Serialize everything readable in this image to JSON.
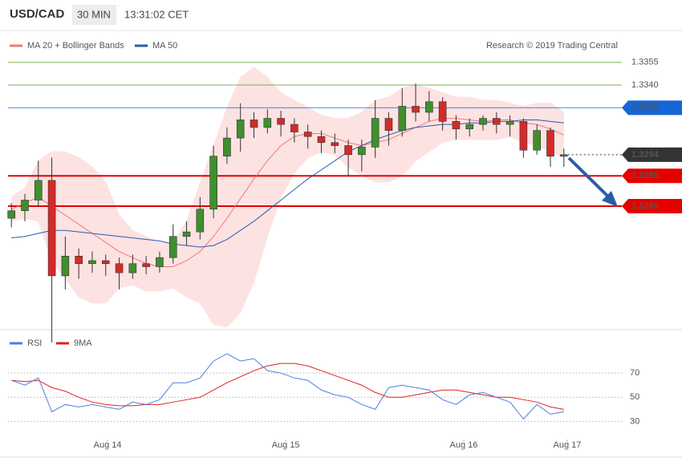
{
  "chart_data": [
    {
      "type": "candlestick",
      "title": "USD/CAD",
      "timeframe": "30 MIN",
      "time": "13:31:02 CET",
      "credit": "Research © 2019 Trading Central",
      "xlim": [
        -0.25,
        45.3
      ],
      "ylim": [
        1.318,
        1.3375
      ],
      "up_color": "#3f8f2f",
      "down_color": "#d42a2a",
      "ohlc": [
        [
          1.3252,
          1.3262,
          1.3246,
          1.3257
        ],
        [
          1.3257,
          1.3268,
          1.325,
          1.3264
        ],
        [
          1.3264,
          1.329,
          1.326,
          1.3277
        ],
        [
          1.3277,
          1.3292,
          1.317,
          1.3214
        ],
        [
          1.3214,
          1.324,
          1.3205,
          1.3227
        ],
        [
          1.3227,
          1.3232,
          1.3212,
          1.3222
        ],
        [
          1.3222,
          1.323,
          1.3216,
          1.3224
        ],
        [
          1.3224,
          1.3228,
          1.3214,
          1.3222
        ],
        [
          1.3222,
          1.3226,
          1.3205,
          1.3216
        ],
        [
          1.3216,
          1.3228,
          1.3212,
          1.3222
        ],
        [
          1.3222,
          1.3227,
          1.3215,
          1.322
        ],
        [
          1.322,
          1.323,
          1.3216,
          1.3226
        ],
        [
          1.3226,
          1.3248,
          1.3222,
          1.324
        ],
        [
          1.324,
          1.325,
          1.3234,
          1.3243
        ],
        [
          1.3243,
          1.3266,
          1.3238,
          1.3258
        ],
        [
          1.3258,
          1.33,
          1.3252,
          1.3293
        ],
        [
          1.3293,
          1.3312,
          1.3288,
          1.3305
        ],
        [
          1.3305,
          1.3328,
          1.3296,
          1.3317
        ],
        [
          1.3317,
          1.3322,
          1.3305,
          1.3312
        ],
        [
          1.3312,
          1.3324,
          1.3308,
          1.3318
        ],
        [
          1.3318,
          1.3323,
          1.3306,
          1.3314
        ],
        [
          1.3314,
          1.3318,
          1.3302,
          1.3309
        ],
        [
          1.3309,
          1.3314,
          1.3298,
          1.3306
        ],
        [
          1.3306,
          1.331,
          1.3295,
          1.3302
        ],
        [
          1.3302,
          1.3308,
          1.3295,
          1.33
        ],
        [
          1.33,
          1.3304,
          1.328,
          1.3294
        ],
        [
          1.3294,
          1.3304,
          1.3283,
          1.3299
        ],
        [
          1.3299,
          1.333,
          1.3292,
          1.3318
        ],
        [
          1.3318,
          1.3322,
          1.33,
          1.331
        ],
        [
          1.331,
          1.3338,
          1.3306,
          1.3326
        ],
        [
          1.3326,
          1.3341,
          1.3316,
          1.3322
        ],
        [
          1.3322,
          1.3336,
          1.3316,
          1.3329
        ],
        [
          1.3329,
          1.3332,
          1.331,
          1.3316
        ],
        [
          1.3316,
          1.332,
          1.3304,
          1.3311
        ],
        [
          1.3311,
          1.3318,
          1.3306,
          1.3314
        ],
        [
          1.3314,
          1.332,
          1.331,
          1.3318
        ],
        [
          1.3318,
          1.3322,
          1.3308,
          1.3314
        ],
        [
          1.3314,
          1.332,
          1.3306,
          1.3316
        ],
        [
          1.3316,
          1.3318,
          1.3292,
          1.3297
        ],
        [
          1.3297,
          1.3314,
          1.3294,
          1.331
        ],
        [
          1.331,
          1.3312,
          1.3286,
          1.3293
        ],
        [
          1.3293,
          1.3298,
          1.3286,
          1.3294
        ]
      ],
      "bands": {
        "color": "#fde2e2",
        "upper": [
          1.3266,
          1.3272,
          1.329,
          1.3296,
          1.3296,
          1.3292,
          1.3286,
          1.3276,
          1.3254,
          1.3244,
          1.324,
          1.3236,
          1.3236,
          1.325,
          1.3275,
          1.33,
          1.3325,
          1.3345,
          1.3352,
          1.3345,
          1.3335,
          1.333,
          1.3325,
          1.332,
          1.3318,
          1.3318,
          1.3322,
          1.333,
          1.3332,
          1.3338,
          1.334,
          1.3338,
          1.3335,
          1.3332,
          1.3332,
          1.333,
          1.333,
          1.3328,
          1.3326,
          1.3328,
          1.3328,
          1.3322
        ],
        "lower": [
          1.325,
          1.3252,
          1.325,
          1.3224,
          1.3212,
          1.32,
          1.3196,
          1.3196,
          1.3206,
          1.3208,
          1.3204,
          1.3204,
          1.3206,
          1.32,
          1.3196,
          1.3182,
          1.318,
          1.319,
          1.321,
          1.324,
          1.3266,
          1.3282,
          1.3292,
          1.3296,
          1.3294,
          1.3286,
          1.328,
          1.3276,
          1.3276,
          1.328,
          1.329,
          1.3296,
          1.3302,
          1.3304,
          1.3304,
          1.3304,
          1.3304,
          1.3306,
          1.3302,
          1.33,
          1.3296,
          1.3292
        ]
      },
      "series": [
        {
          "name": "MA 20 + Bollinger Bands",
          "color": "#f07a7a",
          "values": [
            1.3258,
            1.3262,
            1.3266,
            1.326,
            1.3254,
            1.3248,
            1.3242,
            1.3236,
            1.323,
            1.3226,
            1.3222,
            1.322,
            1.322,
            1.3224,
            1.323,
            1.324,
            1.3252,
            1.3265,
            1.3278,
            1.329,
            1.33,
            1.3306,
            1.3308,
            1.3308,
            1.3305,
            1.3302,
            1.33,
            1.3302,
            1.3304,
            1.3308,
            1.3312,
            1.3316,
            1.3318,
            1.3318,
            1.3317,
            1.3316,
            1.3317,
            1.3317,
            1.3315,
            1.3314,
            1.3311,
            1.3307
          ]
        },
        {
          "name": "MA 50",
          "color": "#2a5caa",
          "values": [
            1.3239,
            1.324,
            1.3242,
            1.3244,
            1.3244,
            1.3243,
            1.3242,
            1.3241,
            1.324,
            1.3239,
            1.3238,
            1.3237,
            1.3235,
            1.3234,
            1.3233,
            1.3234,
            1.3238,
            1.3244,
            1.325,
            1.3257,
            1.3264,
            1.3271,
            1.3278,
            1.3284,
            1.329,
            1.3296,
            1.33,
            1.3304,
            1.3307,
            1.331,
            1.3312,
            1.3313,
            1.3314,
            1.3314,
            1.3315,
            1.3315,
            1.3316,
            1.3316,
            1.3317,
            1.3317,
            1.3316,
            1.3315
          ]
        }
      ],
      "levels": [
        {
          "value": 1.3355,
          "label": "1.3355",
          "color": "#4f9e1f",
          "line": "solid",
          "tag": false
        },
        {
          "value": 1.334,
          "label": "1.3340",
          "color": "#4f9e1f",
          "line": "solid",
          "tag": false
        },
        {
          "value": 1.3325,
          "label": "1.3325",
          "color": "#1565d8",
          "line": "solid",
          "tag": true
        },
        {
          "value": 1.3294,
          "label": "1.3294",
          "color": "#333333",
          "line": "dotted",
          "tag": true
        },
        {
          "value": 1.328,
          "label": "1.3280",
          "color": "#e60000",
          "line": "thick",
          "tag": true
        },
        {
          "value": 1.326,
          "label": "1.3260",
          "color": "#e60000",
          "line": "thick",
          "tag": true
        }
      ]
    },
    {
      "type": "line",
      "xlim": [
        -0.25,
        45.3
      ],
      "ylim": [
        15,
        100
      ],
      "yticks": [
        30,
        50,
        70
      ],
      "grid": true,
      "xticks": [
        {
          "value": 7.14,
          "label": "Aug 14"
        },
        {
          "value": 20.36,
          "label": "Aug 15"
        },
        {
          "value": 33.57,
          "label": "Aug 16"
        },
        {
          "value": 41.25,
          "label": "Aug 17"
        }
      ],
      "series": [
        {
          "name": "RSI",
          "color": "#4a7fe0",
          "values": [
            64,
            60,
            66,
            38,
            44,
            42,
            44,
            42,
            40,
            46,
            44,
            48,
            62,
            62,
            66,
            80,
            86,
            80,
            82,
            72,
            70,
            66,
            64,
            56,
            52,
            50,
            44,
            40,
            58,
            60,
            58,
            56,
            48,
            44,
            52,
            54,
            50,
            46,
            32,
            44,
            36,
            38
          ]
        },
        {
          "name": "9MA",
          "color": "#e02020",
          "values": [
            64,
            63,
            64,
            58,
            55,
            50,
            46,
            44,
            43,
            43,
            44,
            44,
            46,
            48,
            50,
            56,
            62,
            67,
            72,
            76,
            78,
            78,
            76,
            72,
            68,
            64,
            60,
            54,
            50,
            50,
            52,
            54,
            56,
            56,
            54,
            52,
            50,
            50,
            48,
            46,
            42,
            40
          ]
        }
      ]
    }
  ]
}
